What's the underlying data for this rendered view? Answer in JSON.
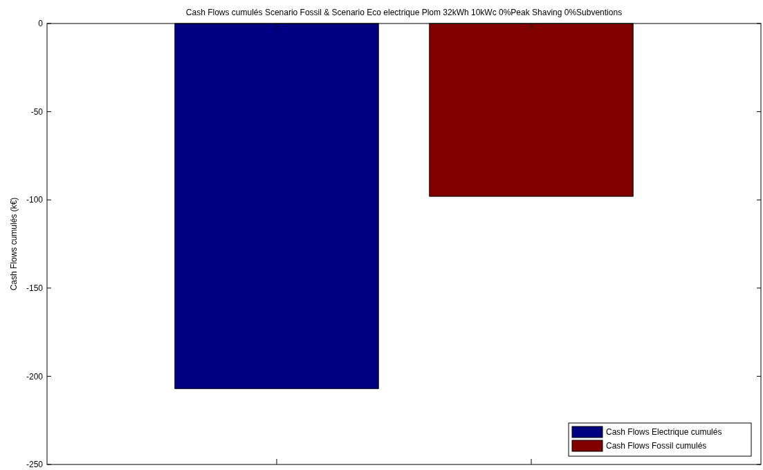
{
  "chart_data": {
    "type": "bar",
    "title": "Cash Flows cumulés Scenario Fossil & Scenario Eco electrique Plom 32kWh 10kWc 0%Peak Shaving 0%Subventions",
    "ylabel": "Cash Flows cumulés (k€)",
    "categories": [
      null
    ],
    "series": [
      {
        "name": "Cash Flows Electrique cumulés",
        "color": "#000080",
        "values": [
          -207
        ]
      },
      {
        "name": "Cash Flows Fossil cumulés",
        "color": "#800000",
        "values": [
          -98
        ]
      }
    ],
    "ylim": [
      -250,
      0
    ],
    "yticks": [
      {
        "value": -250,
        "label": "-250"
      },
      {
        "value": -200,
        "label": "-200"
      },
      {
        "value": -150,
        "label": "-150"
      },
      {
        "value": -100,
        "label": "-100"
      },
      {
        "value": -50,
        "label": "-50"
      },
      {
        "value": 0,
        "label": "0"
      }
    ],
    "grid": false,
    "legend": "bottom right"
  }
}
